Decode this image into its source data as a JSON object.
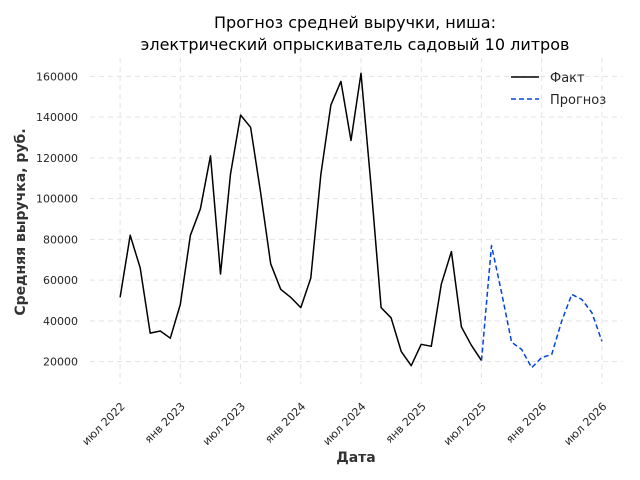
{
  "chart_data": {
    "type": "line",
    "title_lines": [
      "Прогноз средней выручки, ниша:",
      "электрический опрыскиватель садовый 10 литров"
    ],
    "xlabel": "Дата",
    "ylabel": "Средняя выручка, руб.",
    "x_tick_labels": [
      "июл 2022",
      "янв 2023",
      "июл 2023",
      "янв 2024",
      "июл 2024",
      "янв 2025",
      "июл 2025",
      "янв 2026",
      "июл 2026"
    ],
    "y_tick_labels": [
      "20000",
      "40000",
      "60000",
      "80000",
      "100000",
      "120000",
      "140000",
      "160000"
    ],
    "y_ticks": [
      20000,
      40000,
      60000,
      80000,
      100000,
      120000,
      140000,
      160000
    ],
    "ylim": [
      9000,
      169000
    ],
    "xlim": [
      "2022-04",
      "2026-09"
    ],
    "grid": true,
    "legend_position": "top-right",
    "series": [
      {
        "name": "Факт",
        "color": "#000000",
        "style": "solid",
        "x": [
          "2022-07",
          "2022-08",
          "2022-09",
          "2022-10",
          "2022-11",
          "2022-12",
          "2023-01",
          "2023-02",
          "2023-03",
          "2023-04",
          "2023-05",
          "2023-06",
          "2023-07",
          "2023-08",
          "2023-09",
          "2023-10",
          "2023-11",
          "2023-12",
          "2024-01",
          "2024-02",
          "2024-03",
          "2024-04",
          "2024-05",
          "2024-06",
          "2024-07",
          "2024-08",
          "2024-09",
          "2024-10",
          "2024-11",
          "2024-12",
          "2025-01",
          "2025-02",
          "2025-03",
          "2025-04",
          "2025-05",
          "2025-06",
          "2025-07"
        ],
        "values": [
          51500,
          82000,
          66000,
          34000,
          35000,
          31500,
          48000,
          82000,
          95000,
          121000,
          63000,
          112000,
          141000,
          135000,
          103000,
          68000,
          55500,
          51500,
          46500,
          61000,
          112000,
          146000,
          157500,
          128500,
          161500,
          106000,
          46500,
          41500,
          25000,
          18000,
          28500,
          27500,
          58000,
          74000,
          37000,
          28000,
          20500
        ]
      },
      {
        "name": "Прогноз",
        "color": "#0343df",
        "style": "dashed",
        "x": [
          "2025-07",
          "2025-08",
          "2025-09",
          "2025-10",
          "2025-11",
          "2025-12",
          "2026-01",
          "2026-02",
          "2026-03",
          "2026-04",
          "2026-05",
          "2026-06",
          "2026-07"
        ],
        "values": [
          20500,
          77000,
          54000,
          29500,
          26000,
          17000,
          22000,
          23500,
          40000,
          53000,
          50500,
          44000,
          30000
        ]
      }
    ]
  }
}
